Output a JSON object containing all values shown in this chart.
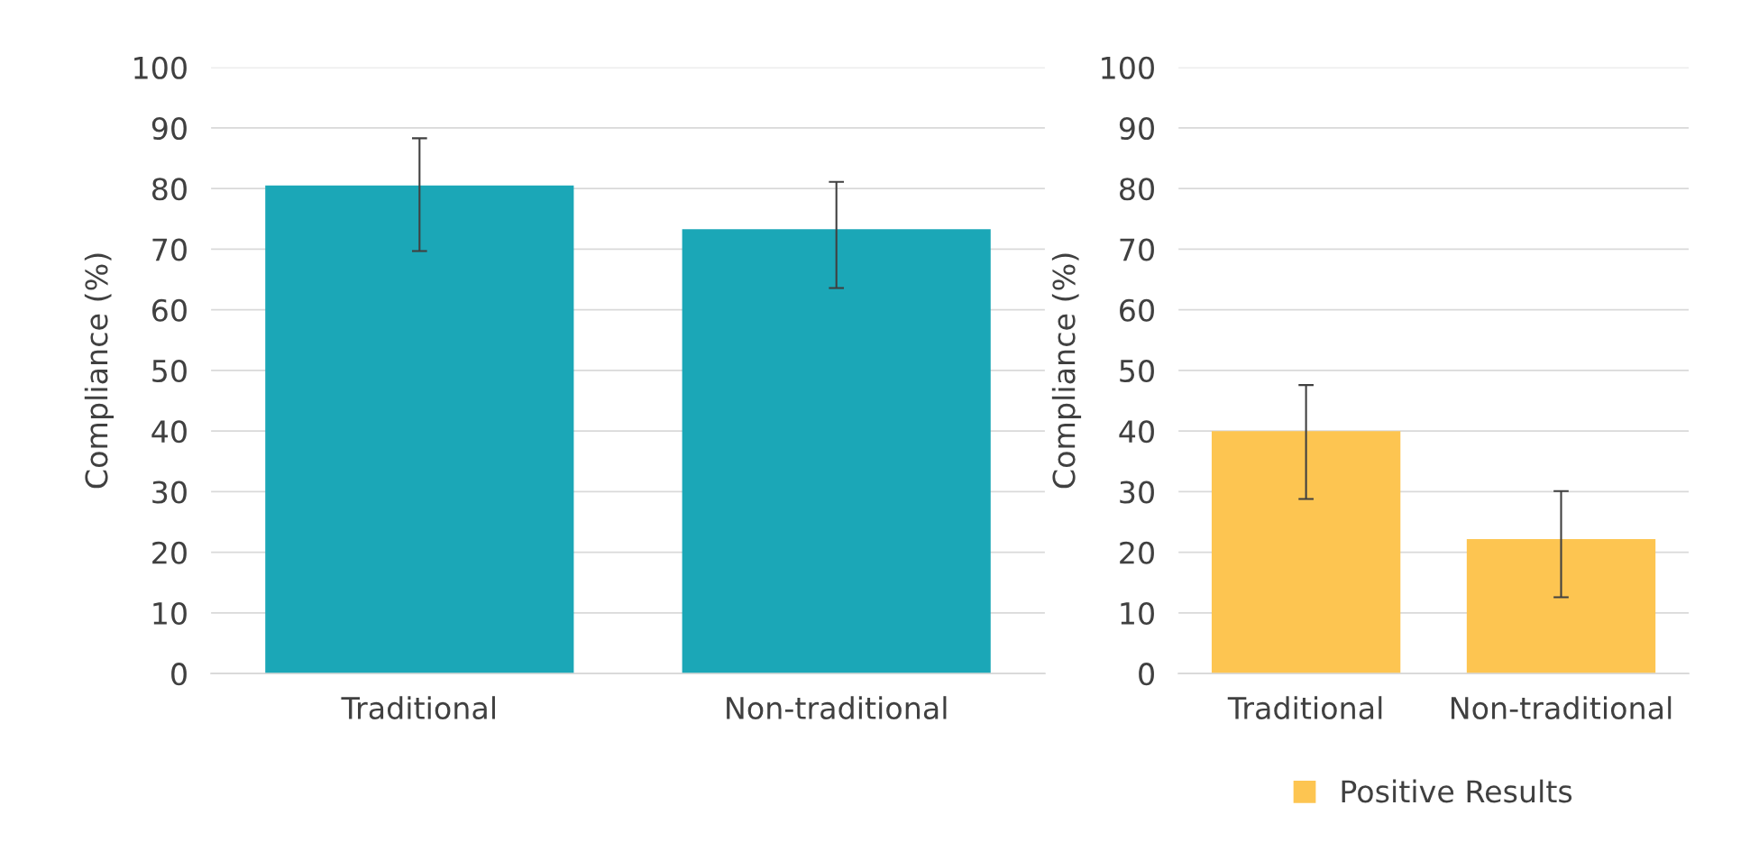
{
  "chart_data": [
    {
      "type": "bar",
      "ylabel": "Compliance (%)",
      "categories": [
        "Traditional",
        "Non-traditional"
      ],
      "series": [
        {
          "color": "#1ba7b7",
          "values": [
            80.5,
            73.3
          ],
          "errors": [
            [
              69.7,
              88.3
            ],
            [
              63.6,
              81.1
            ]
          ]
        }
      ],
      "ylim": [
        0,
        100
      ],
      "yticks": [
        0,
        10,
        20,
        30,
        40,
        50,
        60,
        70,
        80,
        90,
        100
      ],
      "grid": "y",
      "legend": false
    },
    {
      "type": "bar",
      "ylabel": "Compliance (%)",
      "categories": [
        "Traditional",
        "Non-traditional"
      ],
      "series": [
        {
          "name": "Positive Results",
          "color": "#fdc551",
          "values": [
            40,
            22.2
          ],
          "errors": [
            [
              28.8,
              47.6
            ],
            [
              12.6,
              30.1
            ]
          ]
        }
      ],
      "ylim": [
        0,
        100
      ],
      "yticks": [
        0,
        10,
        20,
        30,
        40,
        50,
        60,
        70,
        80,
        90,
        100
      ],
      "grid": "y",
      "legend": "bottom"
    }
  ]
}
